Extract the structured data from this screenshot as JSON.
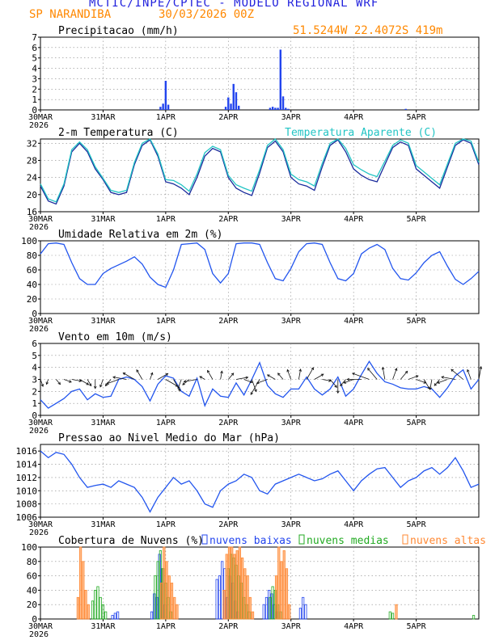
{
  "header": {
    "title": "MCTIC/INPE/CPTEC - MODELO REGIONAL WRF",
    "station": "SP NARANDIBA",
    "date": "30/03/2026 00Z",
    "coords": "51.5244W 22.4072S 419m"
  },
  "x_axis": {
    "labels": [
      "30MAR",
      "31MAR",
      "1APR",
      "2APR",
      "3APR",
      "4APR",
      "5APR"
    ],
    "year": "2026",
    "total_hours": 168
  },
  "colors": {
    "precip": "#2244ee",
    "temp": "#1a2b9c",
    "apparent": "#22c4c4",
    "line": "#2255ee",
    "wind_arrow": "#111111",
    "cloud_low": "#2244ee",
    "cloud_mid": "#22aa22",
    "cloud_high": "#ff8833"
  },
  "chart_data": [
    {
      "type": "bar",
      "title": "Precipitacao (mm/h)",
      "ylim": [
        0,
        7
      ],
      "yticks": [
        0,
        1,
        2,
        3,
        4,
        5,
        6,
        7
      ],
      "series": [
        {
          "name": "precipitation",
          "hours": [
            46,
            47,
            48,
            49,
            71,
            72,
            73,
            74,
            75,
            76,
            88,
            89,
            90,
            91,
            92,
            93,
            94,
            95,
            140
          ],
          "values": [
            0.3,
            0.6,
            2.8,
            0.5,
            0.3,
            1.2,
            0.6,
            2.5,
            1.7,
            0.4,
            0.2,
            0.3,
            0.2,
            0.2,
            5.8,
            1.3,
            0.2,
            0.1,
            0.1
          ]
        }
      ]
    },
    {
      "type": "line",
      "title": "2-m Temperatura (C)",
      "title2": "Temperatura Aparente (C)",
      "ylim": [
        16,
        33
      ],
      "yticks": [
        16,
        20,
        24,
        28,
        32
      ],
      "x_step_hours": 3,
      "series": [
        {
          "name": "Temperatura 2m",
          "values": [
            22,
            18.5,
            17.8,
            22,
            30,
            32,
            30,
            26,
            23.5,
            20.5,
            20,
            20.5,
            27,
            31.5,
            32.8,
            29,
            23,
            22.5,
            21.5,
            20,
            24,
            29,
            30.8,
            30,
            24,
            21.5,
            20.5,
            19.8,
            25,
            31,
            32.5,
            30,
            24,
            22.5,
            22,
            21,
            26.5,
            31.5,
            32.8,
            30,
            26,
            24.5,
            23.5,
            23,
            27,
            31,
            32.3,
            31.5,
            26,
            24.5,
            23,
            21.5,
            26.5,
            31.5,
            32.8,
            32,
            27
          ]
        },
        {
          "name": "Temperatura Aparente",
          "values": [
            22.5,
            19,
            18.3,
            22.5,
            30.5,
            32.3,
            30.5,
            26.5,
            23.8,
            21,
            20.5,
            21,
            27.5,
            32,
            33,
            29.5,
            23.5,
            23.3,
            22.3,
            20.8,
            24.8,
            29.8,
            31.3,
            30.5,
            24.5,
            22.3,
            21.5,
            20.8,
            25.8,
            31.5,
            33,
            30.5,
            24.8,
            23.5,
            23,
            22,
            27.3,
            32,
            33,
            30.8,
            27,
            25.8,
            24.8,
            24.2,
            27.8,
            31.5,
            32.8,
            32,
            26.8,
            25.3,
            23.8,
            22.3,
            27.2,
            32,
            33,
            32.5,
            27.5
          ]
        }
      ]
    },
    {
      "type": "line",
      "title": "Umidade Relativa em 2m (%)",
      "ylim": [
        0,
        100
      ],
      "yticks": [
        0,
        20,
        40,
        60,
        80,
        100
      ],
      "x_step_hours": 3,
      "series": [
        {
          "name": "Umidade",
          "values": [
            82,
            96,
            97,
            95,
            70,
            48,
            40,
            40,
            55,
            62,
            67,
            72,
            78,
            68,
            50,
            40,
            36,
            60,
            95,
            96,
            97,
            88,
            55,
            42,
            55,
            96,
            97,
            97,
            95,
            70,
            48,
            45,
            62,
            85,
            96,
            97,
            95,
            70,
            48,
            45,
            55,
            82,
            90,
            95,
            88,
            62,
            48,
            46,
            56,
            70,
            80,
            85,
            65,
            47,
            40,
            48,
            58
          ]
        }
      ]
    },
    {
      "type": "line",
      "title": "Vento em 10m (m/s)",
      "ylim": [
        0,
        6
      ],
      "yticks": [
        0,
        1,
        2,
        3,
        4,
        5,
        6
      ],
      "x_step_hours": 3,
      "series": [
        {
          "name": "Velocidade",
          "values": [
            1.3,
            0.6,
            1.0,
            1.4,
            2.0,
            2.2,
            1.3,
            1.8,
            1.5,
            1.6,
            3.0,
            3.2,
            3.0,
            2.4,
            1.2,
            2.6,
            3.3,
            3.1,
            2.0,
            1.6,
            3.1,
            0.8,
            2.2,
            1.6,
            1.5,
            2.7,
            1.7,
            3.0,
            4.4,
            2.5,
            1.8,
            1.5,
            2.2,
            2.2,
            3.2,
            2.2,
            1.7,
            2.2,
            3.2,
            1.6,
            2.2,
            3.4,
            4.5,
            3.5,
            2.8,
            2.6,
            2.3,
            2.2,
            2.2,
            2.4,
            2.2,
            1.5,
            2.3,
            3.3,
            3.8,
            2.2,
            3.0
          ]
        }
      ],
      "wind_dir_deg": [
        160,
        200,
        140,
        110,
        100,
        120,
        150,
        180,
        200,
        220,
        250,
        280,
        300,
        330,
        20,
        60,
        120,
        150,
        200,
        230,
        260,
        300,
        330,
        10,
        40,
        80,
        110,
        160,
        210,
        250,
        300,
        320,
        340,
        10,
        30,
        60,
        100,
        140,
        180,
        220,
        250,
        270,
        290,
        320,
        350,
        20,
        40,
        70,
        110,
        150,
        190,
        220,
        250,
        280,
        310,
        340,
        10
      ]
    },
    {
      "type": "line",
      "title": "Pressao ao Nivel Medio do Mar (hPa)",
      "ylim": [
        1006,
        1017
      ],
      "yticks": [
        1006,
        1008,
        1010,
        1012,
        1014,
        1016
      ],
      "x_step_hours": 3,
      "series": [
        {
          "name": "Pressao",
          "values": [
            1016,
            1015,
            1015.8,
            1015.5,
            1014,
            1012,
            1010.5,
            1010.8,
            1011,
            1010.5,
            1011.5,
            1011,
            1010.5,
            1009,
            1006.8,
            1009,
            1010.5,
            1012,
            1011,
            1011.5,
            1010,
            1008,
            1007.5,
            1010,
            1011,
            1011.5,
            1012.5,
            1012,
            1010,
            1009.5,
            1011,
            1011.5,
            1012,
            1012.5,
            1012,
            1011.5,
            1011.8,
            1012.5,
            1013,
            1011.5,
            1010,
            1011.5,
            1012.5,
            1013.3,
            1013.5,
            1012,
            1010.5,
            1011.5,
            1012,
            1013,
            1013.5,
            1012.5,
            1013.5,
            1015,
            1013,
            1010.5,
            1011
          ]
        }
      ]
    },
    {
      "type": "bar",
      "title": "Cobertura de Nuvens (%)",
      "ylim": [
        0,
        100
      ],
      "yticks": [
        0,
        20,
        40,
        60,
        80,
        100
      ],
      "legend": [
        "nuvens baixas",
        "nuvens medias",
        "nuvens altas"
      ],
      "series": [
        {
          "name": "nuvens baixas",
          "hours": [
            28,
            29,
            30,
            43,
            44,
            45,
            46,
            47,
            48,
            68,
            69,
            70,
            71,
            72,
            73,
            74,
            75,
            76,
            86,
            87,
            88,
            89,
            90,
            91,
            100,
            101,
            102
          ],
          "values": [
            5,
            8,
            10,
            10,
            35,
            30,
            90,
            70,
            20,
            55,
            60,
            80,
            70,
            30,
            60,
            50,
            25,
            10,
            20,
            30,
            40,
            35,
            20,
            10,
            15,
            30,
            20
          ]
        },
        {
          "name": "nuvens medias",
          "hours": [
            20,
            21,
            22,
            23,
            24,
            25,
            44,
            45,
            46,
            47,
            48,
            49,
            50,
            72,
            73,
            74,
            75,
            76,
            77,
            78,
            79,
            80,
            88,
            89,
            90,
            91,
            92,
            134,
            135,
            166
          ],
          "values": [
            25,
            40,
            45,
            30,
            20,
            10,
            60,
            80,
            95,
            70,
            50,
            30,
            10,
            70,
            90,
            85,
            75,
            60,
            50,
            30,
            20,
            10,
            30,
            45,
            40,
            20,
            10,
            10,
            8,
            5
          ]
        },
        {
          "name": "nuvens altas",
          "hours": [
            14,
            15,
            16,
            17,
            18,
            46,
            47,
            48,
            49,
            50,
            51,
            52,
            70,
            71,
            72,
            73,
            74,
            75,
            76,
            77,
            78,
            79,
            80,
            81,
            90,
            91,
            92,
            93,
            94,
            95,
            136
          ],
          "values": [
            30,
            100,
            80,
            40,
            20,
            50,
            100,
            80,
            60,
            50,
            30,
            20,
            40,
            90,
            100,
            100,
            90,
            95,
            100,
            85,
            70,
            60,
            30,
            10,
            60,
            100,
            80,
            95,
            70,
            20,
            20
          ]
        }
      ]
    }
  ]
}
